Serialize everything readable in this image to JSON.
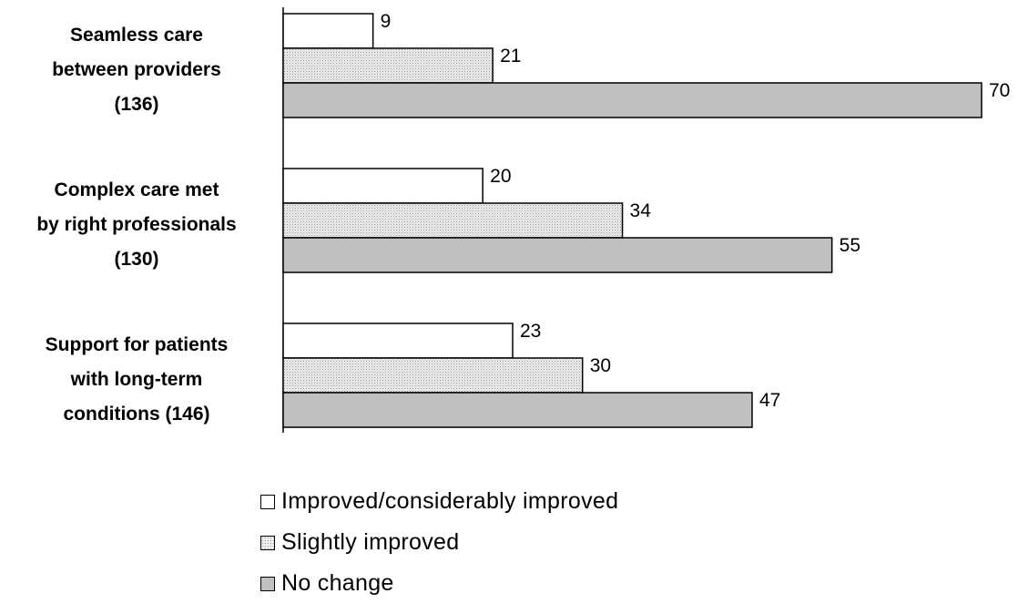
{
  "chart_data": {
    "type": "bar",
    "orientation": "horizontal",
    "categories": [
      [
        "Seamless care",
        "between providers",
        "(136)"
      ],
      [
        "Complex care met",
        "by right professionals",
        "(130)"
      ],
      [
        "Support for patients",
        "with long-term",
        "conditions (146)"
      ]
    ],
    "series": [
      {
        "name": "Improved/considerably improved",
        "values": [
          9,
          20,
          23
        ],
        "color": "#ffffff",
        "pattern": "none"
      },
      {
        "name": "Slightly improved",
        "values": [
          21,
          34,
          30
        ],
        "color": "#e4e4e4",
        "pattern": "dots"
      },
      {
        "name": "No change",
        "values": [
          70,
          55,
          47
        ],
        "color": "#c0c0c0",
        "pattern": "none"
      }
    ],
    "xlim": [
      0,
      70
    ],
    "grid": false,
    "legend_position": "bottom",
    "data_labels": true
  }
}
